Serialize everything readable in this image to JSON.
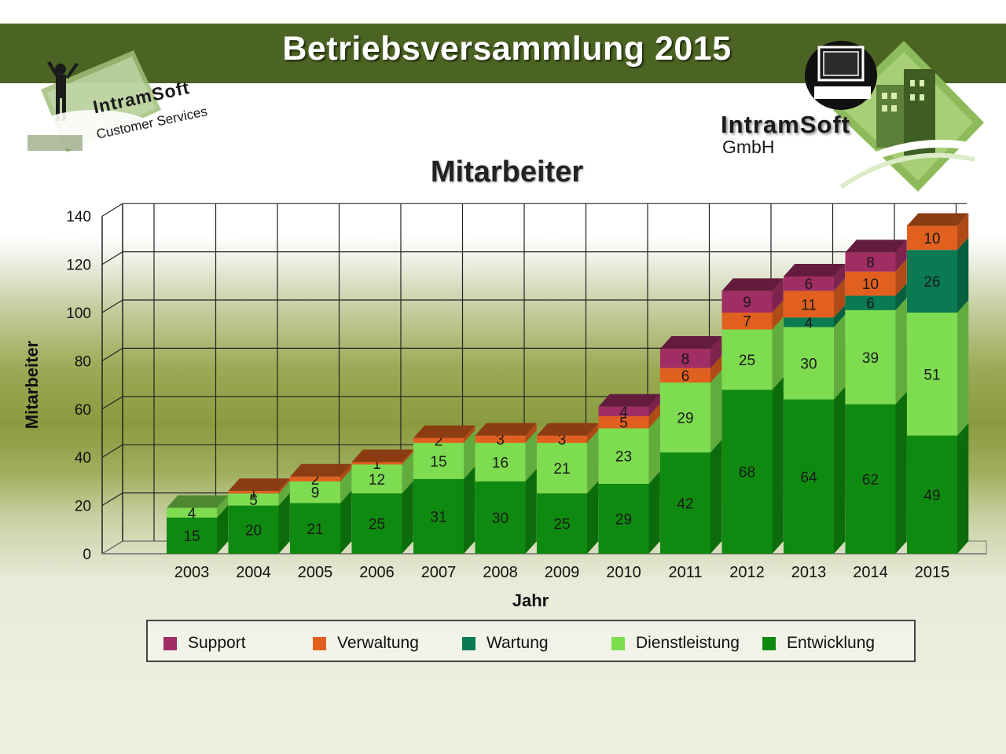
{
  "header": {
    "title": "Betriebsversammlung 2015"
  },
  "logos": {
    "left": {
      "name": "IntramSoft",
      "subtitle": "Customer Services"
    },
    "right": {
      "name": "IntramSoft",
      "subtitle": "GmbH"
    }
  },
  "colors": {
    "banner": "#4c6423",
    "accent": "#8a9b3f"
  },
  "chart_data": {
    "type": "bar",
    "stacked": true,
    "three_d": true,
    "title": "Mitarbeiter",
    "xlabel": "Jahr",
    "ylabel": "Mitarbeiter",
    "ylim": [
      0,
      140
    ],
    "yticks": [
      0,
      20,
      40,
      60,
      80,
      100,
      120,
      140
    ],
    "grid": true,
    "legend_position": "bottom",
    "categories": [
      "2003",
      "2004",
      "2005",
      "2006",
      "2007",
      "2008",
      "2009",
      "2010",
      "2011",
      "2012",
      "2013",
      "2014",
      "2015"
    ],
    "series": [
      {
        "name": "Entwicklung",
        "color": "#0f8a10",
        "values": [
          15,
          20,
          21,
          25,
          31,
          30,
          25,
          29,
          42,
          68,
          64,
          62,
          49
        ]
      },
      {
        "name": "Dienstleistung",
        "color": "#7ddc50",
        "values": [
          4,
          5,
          9,
          12,
          15,
          16,
          21,
          23,
          29,
          25,
          30,
          39,
          51
        ]
      },
      {
        "name": "Wartung",
        "color": "#0a7a52",
        "values": [
          0,
          0,
          0,
          0,
          0,
          0,
          0,
          0,
          0,
          0,
          4,
          6,
          26
        ]
      },
      {
        "name": "Verwaltung",
        "color": "#e2601f",
        "values": [
          0,
          1,
          2,
          1,
          2,
          3,
          3,
          5,
          6,
          7,
          11,
          10,
          10
        ]
      },
      {
        "name": "Support",
        "color": "#a02d63",
        "values": [
          0,
          0,
          0,
          0,
          0,
          0,
          0,
          4,
          8,
          9,
          6,
          8,
          0
        ]
      }
    ],
    "legend_order": [
      "Support",
      "Verwaltung",
      "Wartung",
      "Dienstleistung",
      "Entwicklung"
    ]
  }
}
